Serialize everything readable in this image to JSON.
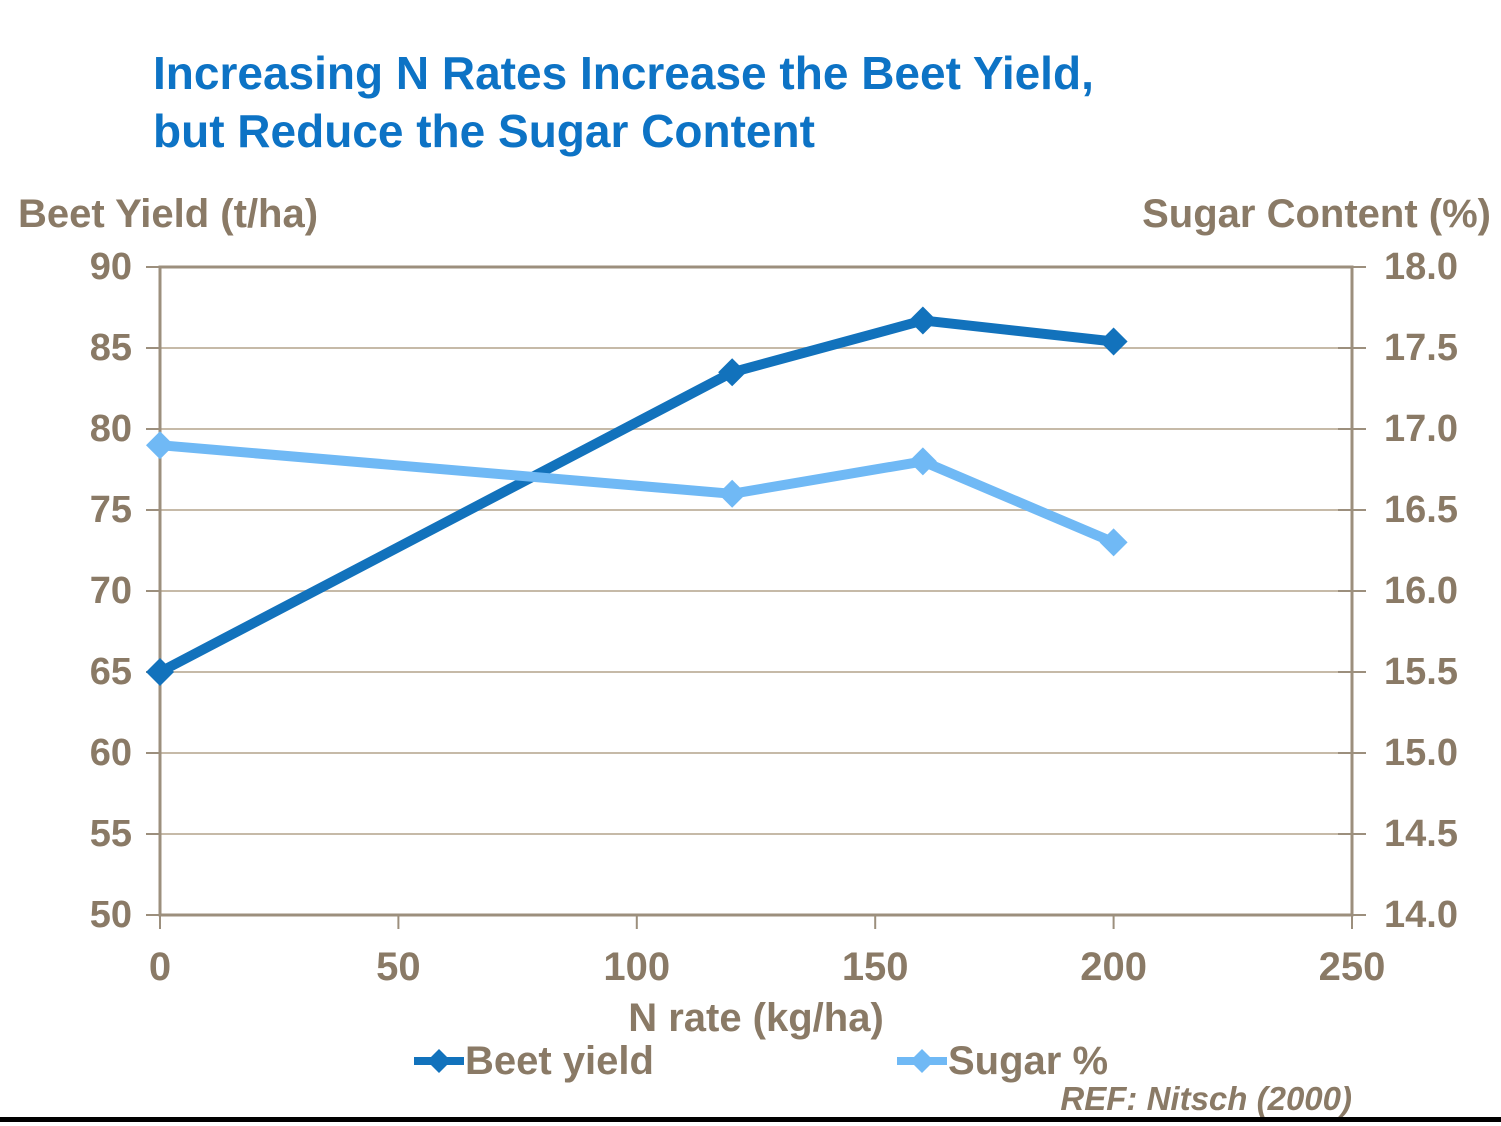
{
  "header": {
    "title_line1": "Increasing N Rates Increase the Beet Yield,",
    "title_line2": "but Reduce the Sugar Content"
  },
  "axes": {
    "left_title": "Beet Yield (t/ha)",
    "right_title": "Sugar Content (%)",
    "x_title": "N rate (kg/ha)",
    "left_ticks": [
      "90",
      "85",
      "80",
      "75",
      "70",
      "65",
      "60",
      "55",
      "50"
    ],
    "right_ticks": [
      "18.0",
      "17.5",
      "17.0",
      "16.5",
      "16.0",
      "15.5",
      "15.0",
      "14.5",
      "14.0"
    ],
    "x_ticks": [
      "0",
      "50",
      "100",
      "150",
      "200",
      "250"
    ]
  },
  "legend": {
    "beet_label": "Beet yield",
    "sugar_label": "Sugar %"
  },
  "footer": {
    "ref": "REF: Nitsch (2000)"
  },
  "colors": {
    "title_blue": "#0d73c5",
    "beet_blue": "#1272bc",
    "sugar_blue": "#70b9f5",
    "axis_text": "#8a7a66",
    "gridline": "#c6baa8",
    "frame": "#9c8f7d",
    "bottom_rule": "#000000"
  },
  "chart_data": {
    "type": "line",
    "title": "Increasing N Rates Increase the Beet Yield, but Reduce the Sugar Content",
    "x": [
      0,
      120,
      160,
      200
    ],
    "series": [
      {
        "name": "Beet yield",
        "axis": "left",
        "values": [
          65.0,
          83.5,
          86.7,
          85.4
        ]
      },
      {
        "name": "Sugar %",
        "axis": "right",
        "values": [
          16.9,
          16.6,
          16.8,
          16.3
        ]
      }
    ],
    "xlabel": "N rate (kg/ha)",
    "ylabel_left": "Beet Yield (t/ha)",
    "ylabel_right": "Sugar Content (%)",
    "xlim": [
      0,
      250
    ],
    "x_tick_step": 50,
    "ylim_left": [
      50,
      90
    ],
    "y_left_tick_step": 5,
    "ylim_right": [
      14.0,
      18.0
    ],
    "y_right_tick_step": 0.5,
    "grid": "horizontal",
    "legend_position": "bottom",
    "marker": "diamond",
    "annotation": "REF: Nitsch (2000)"
  }
}
